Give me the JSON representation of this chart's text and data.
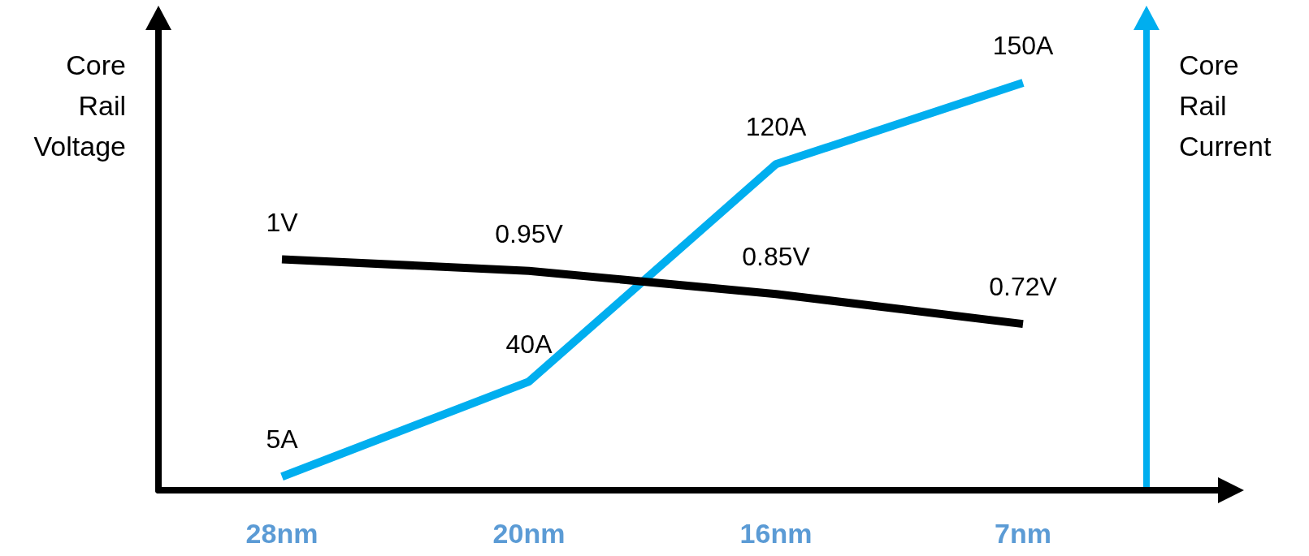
{
  "chart_data": {
    "type": "line",
    "ylabel": "Core Rail Voltage",
    "y2label": "Core Rail Current",
    "categories": [
      "28nm",
      "20nm",
      "16nm",
      "7nm"
    ],
    "marker": "none",
    "grid": false,
    "ylim": [
      0,
      2
    ],
    "y2lim": [
      0,
      170
    ],
    "series": [
      {
        "color": "#00aeef",
        "axis": "y2",
        "values": [
          5,
          40,
          120,
          150
        ],
        "value_labels": [
          "5A",
          "40A",
          "120A",
          "150A"
        ]
      },
      {
        "color": "#000000",
        "values": [
          1,
          0.95,
          0.85,
          0.72
        ],
        "value_labels": [
          "1V",
          "0.95V",
          "0.85V",
          "0.72V"
        ]
      }
    ]
  }
}
